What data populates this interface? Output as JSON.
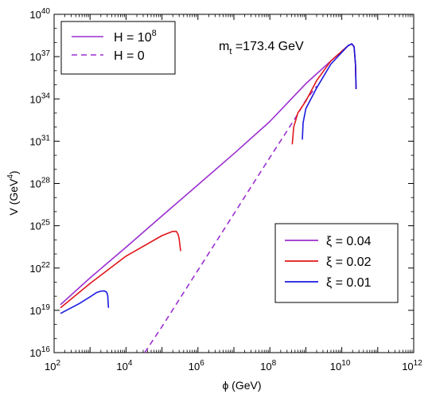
{
  "chart_data": {
    "type": "line",
    "xscale": "log",
    "yscale": "log",
    "xlim": [
      100,
      1000000000000
    ],
    "ylim": [
      1e+16,
      1e+40
    ],
    "xlabel": "ϕ (GeV)",
    "ylabel": "V (GeV",
    "ylabel_sup": "4",
    "ylabel_close": ")",
    "xticks": [
      {
        "value": 100,
        "base": "10",
        "exp": "2"
      },
      {
        "value": 10000,
        "base": "10",
        "exp": "4"
      },
      {
        "value": 1000000,
        "base": "10",
        "exp": "6"
      },
      {
        "value": 100000000,
        "base": "10",
        "exp": "8"
      },
      {
        "value": 10000000000,
        "base": "10",
        "exp": "10"
      },
      {
        "value": 1000000000000,
        "base": "10",
        "exp": "12"
      }
    ],
    "yticks": [
      {
        "value": 1e+16,
        "base": "10",
        "exp": "16"
      },
      {
        "value": 1e+19,
        "base": "10",
        "exp": "19"
      },
      {
        "value": 1e+22,
        "base": "10",
        "exp": "22"
      },
      {
        "value": 1e+25,
        "base": "10",
        "exp": "25"
      },
      {
        "value": 1e+28,
        "base": "10",
        "exp": "28"
      },
      {
        "value": 1e+31,
        "base": "10",
        "exp": "31"
      },
      {
        "value": 1e+34,
        "base": "10",
        "exp": "34"
      },
      {
        "value": 1e+37,
        "base": "10",
        "exp": "37"
      },
      {
        "value": 1e+40,
        "base": "10",
        "exp": "40"
      }
    ],
    "annotation": {
      "text_main": "m",
      "text_sub": "t",
      "text_rest": " =173.4 GeV"
    },
    "legend_style": {
      "position": "top-left",
      "entries": [
        {
          "label": "H = 10",
          "sup": "8",
          "dash": "solid"
        },
        {
          "label": "H = 0",
          "sup": "",
          "dash": "dashed"
        }
      ]
    },
    "legend_xi": {
      "position": "lower-right",
      "entries": [
        {
          "label": "ξ = 0.04",
          "color": "#9b2fd0"
        },
        {
          "label": "ξ = 0.02",
          "color": "#e0161a"
        },
        {
          "label": "ξ = 0.01",
          "color": "#1a1ae0"
        }
      ]
    },
    "series": [
      {
        "id": "xi004-H1e8",
        "color": "#9b2fd0",
        "dash": "solid",
        "points": [
          [
            150,
            2.5e+19
          ],
          [
            1000,
            2e+21
          ],
          [
            10000,
            3e+23
          ],
          [
            100000,
            5e+25
          ],
          [
            1000000,
            8e+27
          ],
          [
            10000000,
            1.3e+30
          ],
          [
            100000000,
            2.5e+32
          ],
          [
            1000000000,
            1.2e+35
          ],
          [
            5000000000,
            5e+36
          ],
          [
            15000000000,
            6e+37
          ],
          [
            19000000000,
            8e+37
          ],
          [
            22000000000,
            5e+37
          ],
          [
            24000000000,
            3e+36
          ],
          [
            25000000000,
            5e+34
          ]
        ]
      },
      {
        "id": "xi004-H0",
        "color": "#9b2fd0",
        "dash": "dashed",
        "points": [
          [
            33000,
            1e+16
          ],
          [
            100000,
            7e+17
          ],
          [
            1000000,
            7e+21
          ],
          [
            10000000,
            7e+25
          ],
          [
            100000000,
            7e+29
          ],
          [
            500000000,
            4e+32
          ],
          [
            1000000000,
            8e+33
          ],
          [
            2000000000,
            8e+34
          ]
        ]
      },
      {
        "id": "xi002-H1e8",
        "color": "#e0161a",
        "dash": "solid",
        "points": [
          [
            150,
            1.5e+19
          ],
          [
            1000,
            8e+20
          ],
          [
            10000,
            7e+22
          ],
          [
            100000,
            2e+24
          ],
          [
            200000,
            4e+24
          ],
          [
            250000,
            4e+24
          ],
          [
            280000,
            2.5e+24
          ],
          [
            300000,
            1.2e+24
          ],
          [
            330000,
            1.6e+23
          ]
        ]
      },
      {
        "id": "xi002-H0",
        "color": "#e0161a",
        "dash": "solid",
        "points": [
          [
            420000000,
            6e+30
          ],
          [
            460000000,
            1e+32
          ],
          [
            600000000,
            1e+33
          ],
          [
            1000000000,
            7e+33
          ],
          [
            2000000000,
            2e+35
          ],
          [
            5000000000,
            5e+36
          ],
          [
            15000000000,
            6e+37
          ],
          [
            19000000000,
            8e+37
          ],
          [
            22000000000,
            5e+37
          ],
          [
            24000000000,
            3e+36
          ],
          [
            25000000000,
            5e+34
          ]
        ]
      },
      {
        "id": "xi001-H1e8",
        "color": "#1a1ae0",
        "dash": "solid",
        "points": [
          [
            150,
            6e+18
          ],
          [
            500,
            3e+19
          ],
          [
            1000,
            9e+19
          ],
          [
            1500,
            1.8e+20
          ],
          [
            2000,
            2.3e+20
          ],
          [
            2500,
            2.4e+20
          ],
          [
            2900,
            1.9e+20
          ],
          [
            3100,
            1.1e+20
          ],
          [
            3250,
            1.5e+19
          ]
        ]
      },
      {
        "id": "xi001-H0",
        "color": "#1a1ae0",
        "dash": "solid",
        "points": [
          [
            800000000,
            1.3e+31
          ],
          [
            840000000,
            2e+32
          ],
          [
            1000000000,
            2e+33
          ],
          [
            2000000000,
            6e+34
          ],
          [
            5000000000,
            3e+36
          ],
          [
            15000000000,
            6e+37
          ],
          [
            19000000000,
            8e+37
          ],
          [
            22000000000,
            5e+37
          ],
          [
            24000000000,
            3e+36
          ],
          [
            25000000000,
            5e+34
          ]
        ]
      }
    ]
  }
}
